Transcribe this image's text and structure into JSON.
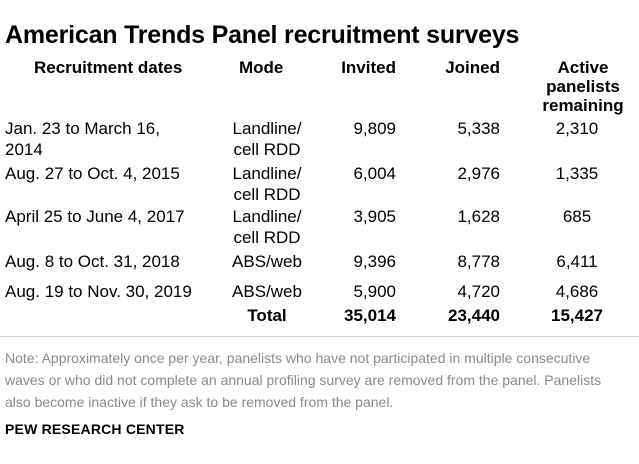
{
  "title": "American Trends Panel recruitment surveys",
  "headers": {
    "dates": "Recruitment dates",
    "mode": "Mode",
    "invited": "Invited",
    "joined": "Joined",
    "active": [
      "Active",
      "panelists",
      "remaining"
    ]
  },
  "rows": [
    {
      "dates": [
        "Jan. 23 to March 16,",
        "2014"
      ],
      "mode": [
        "Landline/",
        "cell RDD"
      ],
      "invited": "9,809",
      "joined": "5,338",
      "active": "2,310"
    },
    {
      "dates": [
        "Aug. 27 to Oct. 4, 2015"
      ],
      "mode": [
        "Landline/",
        "cell RDD"
      ],
      "invited": "6,004",
      "joined": "2,976",
      "active": "1,335"
    },
    {
      "dates": [
        "April 25 to June 4, 2017"
      ],
      "mode": [
        "Landline/",
        "cell RDD"
      ],
      "invited": "3,905",
      "joined": "1,628",
      "active": "685"
    },
    {
      "dates": [
        "Aug. 8 to Oct. 31, 2018"
      ],
      "mode": [
        "ABS/web"
      ],
      "invited": "9,396",
      "joined": "8,778",
      "active": "6,411"
    },
    {
      "dates": [
        "Aug. 19 to Nov. 30, 2019"
      ],
      "mode": [
        "ABS/web"
      ],
      "invited": "5,900",
      "joined": "4,720",
      "active": "4,686"
    }
  ],
  "total": {
    "label": "Total",
    "invited": "35,014",
    "joined": "23,440",
    "active": "15,427"
  },
  "note": "Note: Approximately once per year, panelists who have not participated in multiple consecutive waves or who did not complete an annual profiling survey are removed from the panel. Panelists also become inactive if they ask to be removed from the panel.",
  "source": "PEW RESEARCH CENTER"
}
